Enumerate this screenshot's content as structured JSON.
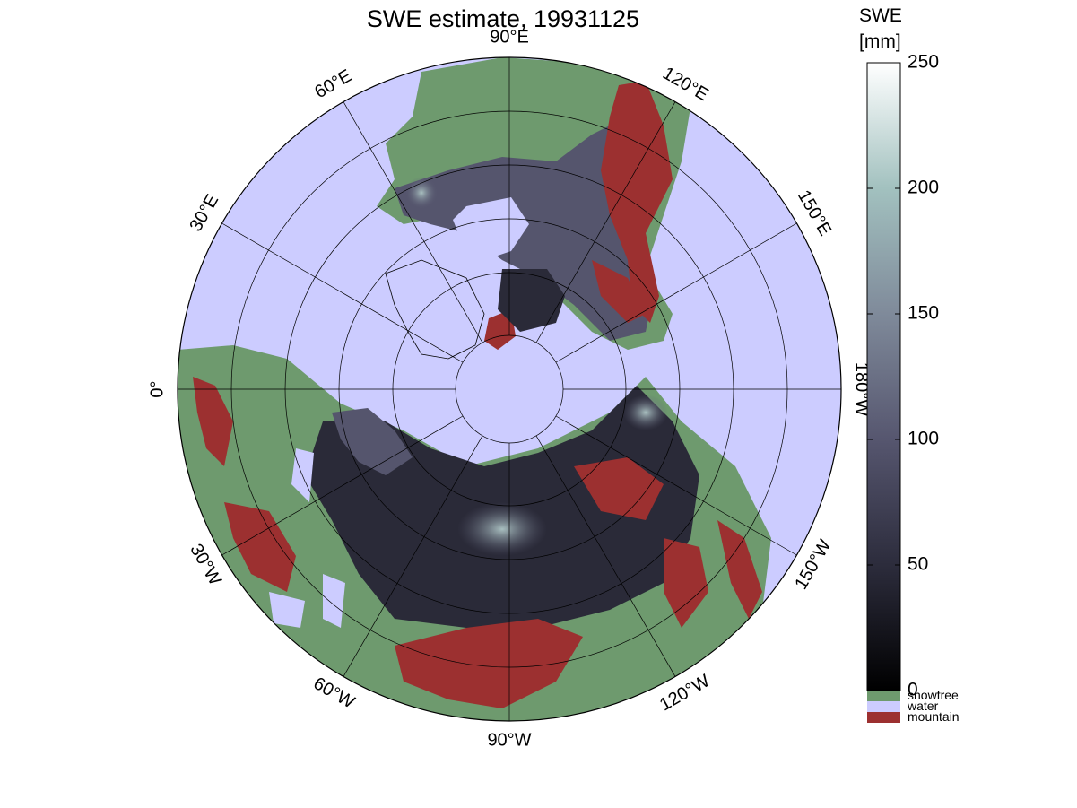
{
  "title": "SWE estimate, 19931125",
  "colorbar": {
    "title_line1": "SWE",
    "title_line2": "[mm]",
    "ticks": [
      "0",
      "50",
      "100",
      "150",
      "200",
      "250"
    ],
    "tick_values": [
      0,
      50,
      100,
      150,
      200,
      250
    ],
    "range": [
      0,
      250
    ],
    "gradient_colors": [
      "#000000",
      "#2c2c3c",
      "#56566f",
      "#7f8a9a",
      "#a2c1bf",
      "#ffffff"
    ],
    "categories": [
      {
        "label": "snowfree",
        "color": "#6e9a6e"
      },
      {
        "label": "water",
        "color": "#ccccff"
      },
      {
        "label": "mountain",
        "color": "#9c3030"
      }
    ]
  },
  "map": {
    "projection": "north polar stereographic",
    "meridian_labels": [
      {
        "lon": 90,
        "hemi": "W",
        "text": "90°W"
      },
      {
        "lon": 120,
        "hemi": "W",
        "text": "120°W"
      },
      {
        "lon": 150,
        "hemi": "W",
        "text": "150°W"
      },
      {
        "lon": 180,
        "hemi": "W",
        "text": "180°W"
      },
      {
        "lon": 150,
        "hemi": "E",
        "text": "150°E"
      },
      {
        "lon": 120,
        "hemi": "E",
        "text": "120°E"
      },
      {
        "lon": 90,
        "hemi": "E",
        "text": "90°E"
      },
      {
        "lon": 60,
        "hemi": "E",
        "text": "60°E"
      },
      {
        "lon": 30,
        "hemi": "E",
        "text": "30°E"
      },
      {
        "lon": 0,
        "hemi": "",
        "text": "0°"
      },
      {
        "lon": 30,
        "hemi": "W",
        "text": "30°W"
      },
      {
        "lon": 60,
        "hemi": "W",
        "text": "60°W"
      }
    ],
    "colors": {
      "ocean": "#ccccff",
      "snowfree": "#6e9a6e",
      "mountain": "#9c3030",
      "snow_dark": "#2a2a38",
      "snow_mid": "#55556d",
      "snow_high": "#9ab5b5",
      "grid": "#000000"
    }
  }
}
